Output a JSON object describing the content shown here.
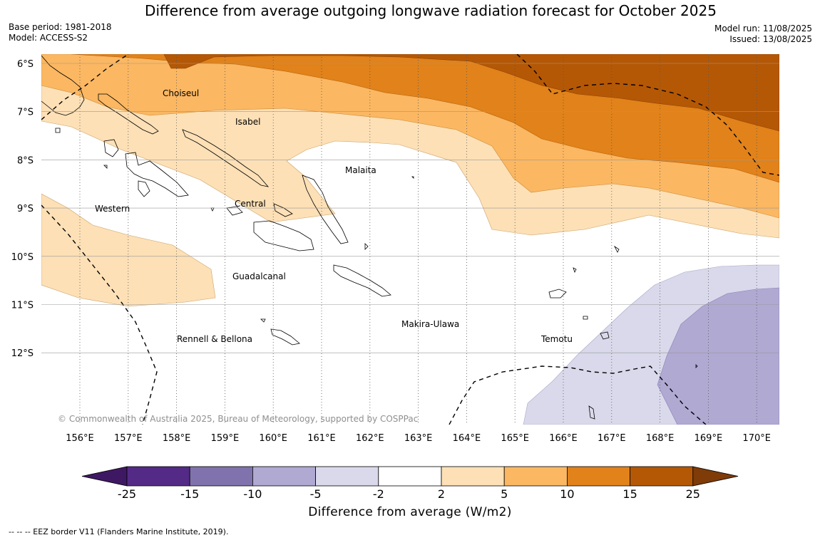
{
  "title": "Difference from average outgoing longwave radiation forecast for October 2025",
  "meta_left": {
    "base_period": "Base period: 1981-2018",
    "model": "Model: ACCESS-S2"
  },
  "meta_right": {
    "model_run": "Model run: 11/08/2025",
    "issued": "Issued: 13/08/2025"
  },
  "map": {
    "lon_range": [
      155.3,
      170.5
    ],
    "lat_range": [
      -5.8,
      -13.5
    ],
    "lon_ticks": [
      "156°E",
      "157°E",
      "158°E",
      "159°E",
      "160°E",
      "161°E",
      "162°E",
      "163°E",
      "164°E",
      "165°E",
      "166°E",
      "167°E",
      "168°E",
      "169°E",
      "170°E"
    ],
    "lat_ticks": [
      "6°S",
      "7°S",
      "8°S",
      "9°S",
      "10°S",
      "11°S",
      "12°S"
    ],
    "regions": [
      "Choiseul",
      "Isabel",
      "Malaita",
      "Western",
      "Central",
      "Guadalcanal",
      "Makira-Ulawa",
      "Rennell & Bellona",
      "Temotu"
    ],
    "copyright": "© Commonwealth of Australia 2025, Bureau of Meteorology, supported by COSPPac",
    "grid": true
  },
  "colorbar": {
    "title": "Difference from average (W/m2)",
    "ticks": [
      "-25",
      "-15",
      "-10",
      "-5",
      "-2",
      "2",
      "5",
      "10",
      "15",
      "25"
    ],
    "colors": [
      "#3f1864",
      "#542a87",
      "#8073ad",
      "#b0a9d2",
      "#d9d9eb",
      "#ffffff",
      "#fde0b6",
      "#fbb762",
      "#e1821a",
      "#b45806",
      "#7f3b08"
    ],
    "extend": "both"
  },
  "footnote": "--  --  -- EEZ border V11 (Flanders Marine Institute, 2019)."
}
